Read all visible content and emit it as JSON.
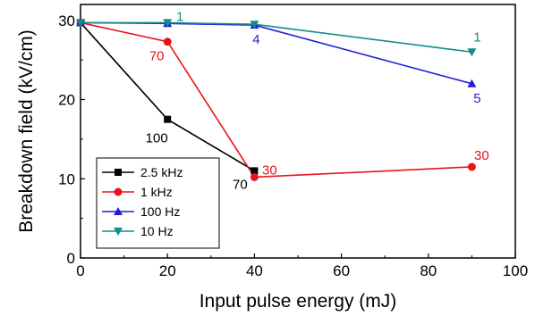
{
  "chart_data": {
    "type": "line",
    "title": "",
    "xlabel": "Input pulse energy (mJ)",
    "ylabel": "Breakdown field (kV/cm)",
    "xlim": [
      0,
      100
    ],
    "ylim": [
      0,
      32
    ],
    "xticks": [
      0,
      20,
      40,
      60,
      80,
      100
    ],
    "yticks": [
      0,
      10,
      20,
      30
    ],
    "grid": false,
    "legend_position": "bottom-left",
    "series": [
      {
        "name": "2.5 kHz",
        "color": "#000000",
        "marker": "square",
        "x": [
          0,
          20,
          40
        ],
        "y": [
          29.7,
          17.5,
          11.0
        ],
        "point_labels": [
          "",
          "100",
          "70"
        ]
      },
      {
        "name": "1 kHz",
        "color": "#e8141b",
        "marker": "circle",
        "x": [
          0,
          20,
          40,
          90
        ],
        "y": [
          29.7,
          27.3,
          10.2,
          11.5
        ],
        "point_labels": [
          "",
          "70",
          "30",
          "30"
        ]
      },
      {
        "name": "100 Hz",
        "color": "#1f1fd6",
        "marker": "triangle-up",
        "x": [
          0,
          20,
          40,
          90
        ],
        "y": [
          29.7,
          29.6,
          29.4,
          22.0
        ],
        "point_labels": [
          "",
          "",
          "4",
          "5"
        ]
      },
      {
        "name": "10 Hz",
        "color": "#128c8c",
        "marker": "triangle-down",
        "x": [
          0,
          20,
          40,
          90
        ],
        "y": [
          29.7,
          29.7,
          29.5,
          26.0
        ],
        "point_labels": [
          "",
          "1",
          "",
          "1"
        ]
      }
    ]
  }
}
